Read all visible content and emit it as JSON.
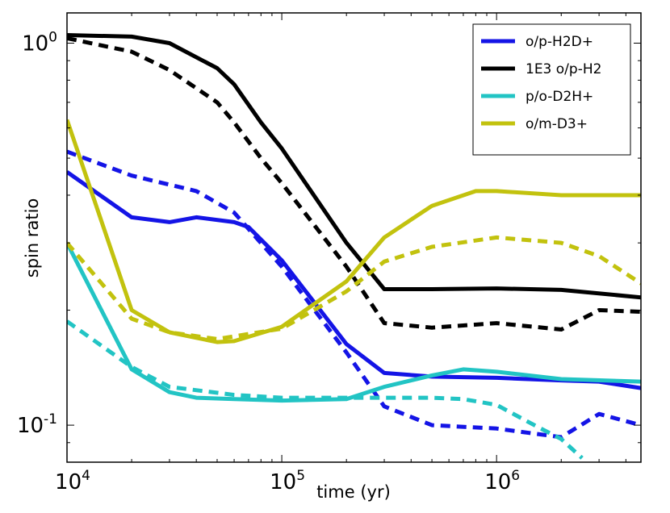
{
  "chart_data": {
    "type": "line",
    "xlabel": "time (yr)",
    "ylabel": "spin ratio",
    "xscale": "log",
    "yscale": "log",
    "xlim": [
      10000,
      4700000
    ],
    "ylim": [
      0.08,
      1.2
    ],
    "x_ticks": [
      {
        "base": "10",
        "exp": "4"
      },
      {
        "base": "10",
        "exp": "5"
      },
      {
        "base": "10",
        "exp": "6"
      }
    ],
    "y_ticks": [
      {
        "base": "10",
        "exp": "0"
      },
      {
        "base": "10",
        "exp": "-1"
      }
    ],
    "grid": false,
    "legend_position": "top-right",
    "series": [
      {
        "name": "o/p-H2D+",
        "color": "#1414e6",
        "style": "solid",
        "points": [
          [
            10000,
            0.46
          ],
          [
            20000,
            0.35
          ],
          [
            30000,
            0.34
          ],
          [
            40000,
            0.35
          ],
          [
            60000,
            0.34
          ],
          [
            70000,
            0.33
          ],
          [
            100000,
            0.27
          ],
          [
            200000,
            0.163
          ],
          [
            300000,
            0.137
          ],
          [
            500000,
            0.134
          ],
          [
            1000000,
            0.133
          ],
          [
            2000000,
            0.131
          ],
          [
            3000000,
            0.13
          ],
          [
            4700000,
            0.125
          ]
        ]
      },
      {
        "name": "o/p-H2D+",
        "color": "#1414e6",
        "style": "dashed",
        "points": [
          [
            10000,
            0.52
          ],
          [
            20000,
            0.45
          ],
          [
            40000,
            0.41
          ],
          [
            60000,
            0.36
          ],
          [
            100000,
            0.26
          ],
          [
            200000,
            0.155
          ],
          [
            300000,
            0.112
          ],
          [
            500000,
            0.1
          ],
          [
            1000000,
            0.098
          ],
          [
            2000000,
            0.093
          ],
          [
            3000000,
            0.107
          ],
          [
            4700000,
            0.1
          ]
        ]
      },
      {
        "name": "1E3 o/p-H2",
        "color": "#000000",
        "style": "solid",
        "points": [
          [
            10000,
            1.05
          ],
          [
            20000,
            1.04
          ],
          [
            30000,
            1.0
          ],
          [
            50000,
            0.86
          ],
          [
            60000,
            0.78
          ],
          [
            80000,
            0.62
          ],
          [
            100000,
            0.53
          ],
          [
            200000,
            0.3
          ],
          [
            300000,
            0.227
          ],
          [
            500000,
            0.227
          ],
          [
            1000000,
            0.228
          ],
          [
            2000000,
            0.226
          ],
          [
            4700000,
            0.216
          ]
        ]
      },
      {
        "name": "1E3 o/p-H2",
        "color": "#000000",
        "style": "dashed",
        "points": [
          [
            10000,
            1.03
          ],
          [
            20000,
            0.95
          ],
          [
            30000,
            0.85
          ],
          [
            50000,
            0.7
          ],
          [
            60000,
            0.62
          ],
          [
            80000,
            0.5
          ],
          [
            100000,
            0.43
          ],
          [
            200000,
            0.26
          ],
          [
            300000,
            0.185
          ],
          [
            500000,
            0.18
          ],
          [
            1000000,
            0.185
          ],
          [
            2000000,
            0.178
          ],
          [
            3000000,
            0.2
          ],
          [
            4700000,
            0.198
          ]
        ]
      },
      {
        "name": "p/o-D2H+",
        "color": "#22c4c4",
        "style": "solid",
        "points": [
          [
            10000,
            0.3
          ],
          [
            20000,
            0.14
          ],
          [
            30000,
            0.122
          ],
          [
            40000,
            0.118
          ],
          [
            60000,
            0.117
          ],
          [
            100000,
            0.116
          ],
          [
            200000,
            0.117
          ],
          [
            300000,
            0.126
          ],
          [
            500000,
            0.135
          ],
          [
            700000,
            0.14
          ],
          [
            1000000,
            0.138
          ],
          [
            2000000,
            0.132
          ],
          [
            4700000,
            0.13
          ]
        ]
      },
      {
        "name": "p/o-D2H+",
        "color": "#22c4c4",
        "style": "dashed",
        "points": [
          [
            10000,
            0.187
          ],
          [
            20000,
            0.142
          ],
          [
            30000,
            0.126
          ],
          [
            60000,
            0.12
          ],
          [
            100000,
            0.118
          ],
          [
            200000,
            0.118
          ],
          [
            300000,
            0.118
          ],
          [
            500000,
            0.118
          ],
          [
            700000,
            0.117
          ],
          [
            1000000,
            0.113
          ],
          [
            1500000,
            0.1
          ],
          [
            2000000,
            0.092
          ],
          [
            2500000,
            0.082
          ]
        ]
      },
      {
        "name": "o/m-D3+",
        "color": "#c2c20e",
        "style": "solid",
        "points": [
          [
            10000,
            0.63
          ],
          [
            20000,
            0.2
          ],
          [
            30000,
            0.175
          ],
          [
            50000,
            0.165
          ],
          [
            60000,
            0.166
          ],
          [
            100000,
            0.181
          ],
          [
            200000,
            0.238
          ],
          [
            300000,
            0.31
          ],
          [
            500000,
            0.375
          ],
          [
            800000,
            0.41
          ],
          [
            1000000,
            0.41
          ],
          [
            2000000,
            0.4
          ],
          [
            4700000,
            0.4
          ]
        ]
      },
      {
        "name": "o/m-D3+",
        "color": "#c2c20e",
        "style": "dashed",
        "points": [
          [
            10000,
            0.3
          ],
          [
            20000,
            0.19
          ],
          [
            30000,
            0.175
          ],
          [
            50000,
            0.168
          ],
          [
            100000,
            0.179
          ],
          [
            200000,
            0.224
          ],
          [
            300000,
            0.268
          ],
          [
            500000,
            0.293
          ],
          [
            1000000,
            0.31
          ],
          [
            2000000,
            0.3
          ],
          [
            3000000,
            0.277
          ],
          [
            4700000,
            0.235
          ]
        ]
      }
    ],
    "legend": [
      {
        "label": "o/p-H2D+",
        "color": "#1414e6"
      },
      {
        "label": "1E3 o/p-H2",
        "color": "#000000"
      },
      {
        "label": "p/o-D2H+",
        "color": "#22c4c4"
      },
      {
        "label": "o/m-D3+",
        "color": "#c2c20e"
      }
    ]
  }
}
